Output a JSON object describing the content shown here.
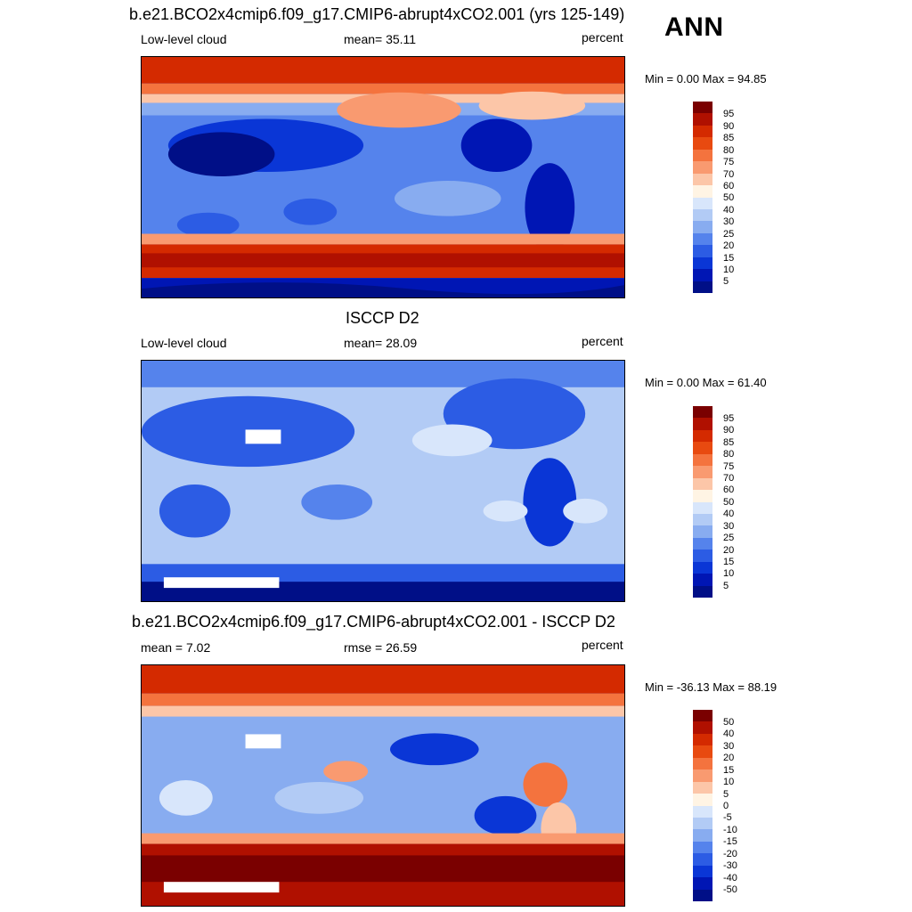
{
  "season_label": "ANN",
  "panels": [
    {
      "title": "b.e21.BCO2x4cmip6.f09_g17.CMIP6-abrupt4xCO2.001 (yrs 125-149)",
      "left_label": "Low-level cloud",
      "center_label": "mean=  35.11",
      "units": "percent",
      "minmax": "Min =   0.00 Max =  94.85",
      "field": "model low-level cloud fraction"
    },
    {
      "title": "ISCCP D2",
      "left_label": "Low-level cloud",
      "center_label": "mean=  28.09",
      "units": "percent",
      "minmax": "Min =   0.00 Max =  61.40",
      "field": "observed low-level cloud fraction"
    },
    {
      "title": "b.e21.BCO2x4cmip6.f09_g17.CMIP6-abrupt4xCO2.001 - ISCCP D2",
      "left_label": "mean =   7.02",
      "center_label": "rmse =  26.59",
      "units": "percent",
      "minmax": "Min = -36.13 Max =  88.19",
      "field": "difference model minus observation"
    }
  ],
  "colorbars": {
    "cloud": {
      "levels": [
        "95",
        "90",
        "85",
        "80",
        "75",
        "70",
        "60",
        "50",
        "40",
        "30",
        "25",
        "20",
        "15",
        "10",
        "5"
      ],
      "colors": [
        "#7a0000",
        "#b01000",
        "#d42a00",
        "#e84a10",
        "#f4733e",
        "#f99a70",
        "#fcc6a8",
        "#fff4e4",
        "#d8e6fb",
        "#b2cbf5",
        "#88acf0",
        "#5583ec",
        "#2c5ce4",
        "#0a36d6",
        "#0016b4",
        "#000f87"
      ]
    },
    "diff": {
      "levels": [
        "50",
        "40",
        "30",
        "20",
        "15",
        "10",
        "5",
        "0",
        "-5",
        "-10",
        "-15",
        "-20",
        "-30",
        "-40",
        "-50"
      ],
      "colors": [
        "#7a0000",
        "#b01000",
        "#d42a00",
        "#e84a10",
        "#f4733e",
        "#f99a70",
        "#fcc6a8",
        "#fff4e4",
        "#d8e6fb",
        "#b2cbf5",
        "#88acf0",
        "#5583ec",
        "#2c5ce4",
        "#0a36d6",
        "#0016b4",
        "#000f87"
      ]
    }
  }
}
